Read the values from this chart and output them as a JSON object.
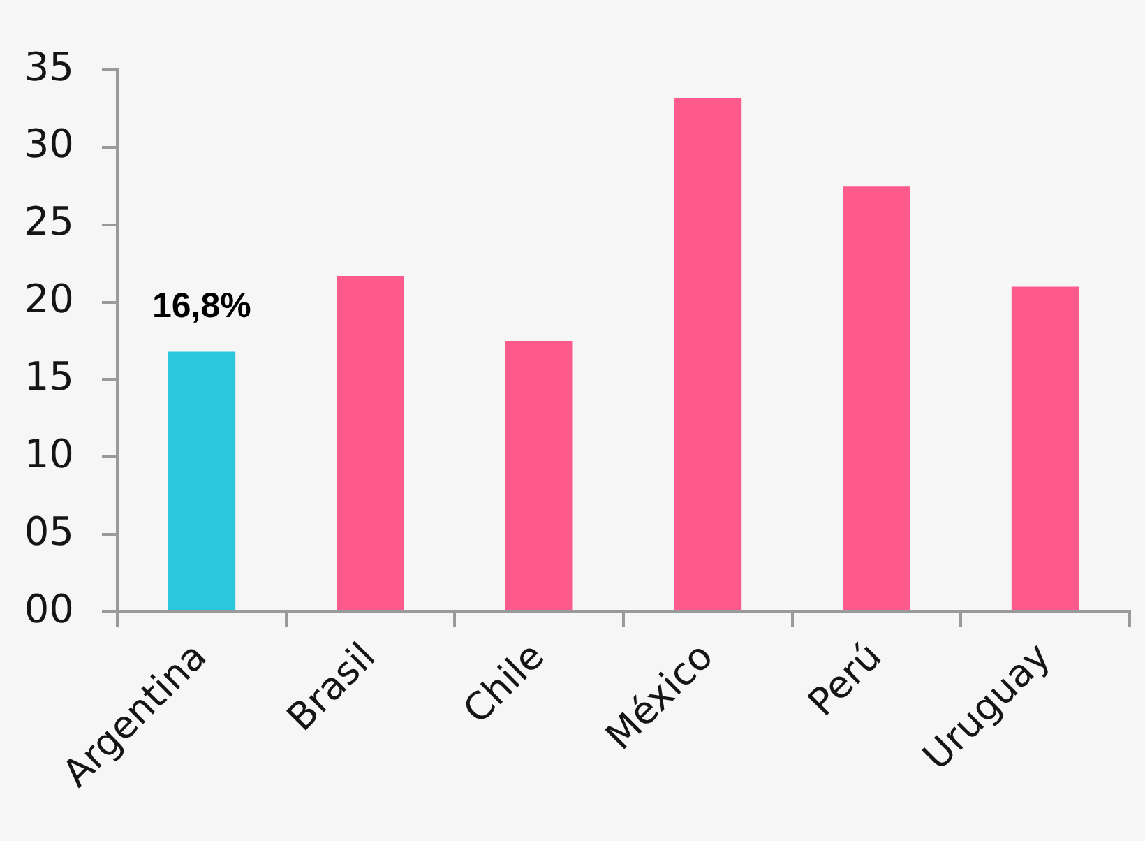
{
  "chart_data": {
    "type": "bar",
    "categories": [
      "Argentina",
      "Brasil",
      "Chile",
      "México",
      "Perú",
      "Uruguay"
    ],
    "values": [
      16.8,
      21.7,
      17.5,
      33.2,
      27.5,
      21.0
    ],
    "colors": [
      "#2bc7dd",
      "#ff5a8c",
      "#ff5a8c",
      "#ff5a8c",
      "#ff5a8c",
      "#ff5a8c"
    ],
    "value_labels": [
      "16,8%",
      null,
      null,
      null,
      null,
      null
    ],
    "ylim": [
      0,
      35
    ],
    "yticks": [
      {
        "value": 0,
        "label": "00"
      },
      {
        "value": 5,
        "label": "05"
      },
      10,
      15,
      20,
      25,
      30,
      35
    ],
    "grid": false
  }
}
